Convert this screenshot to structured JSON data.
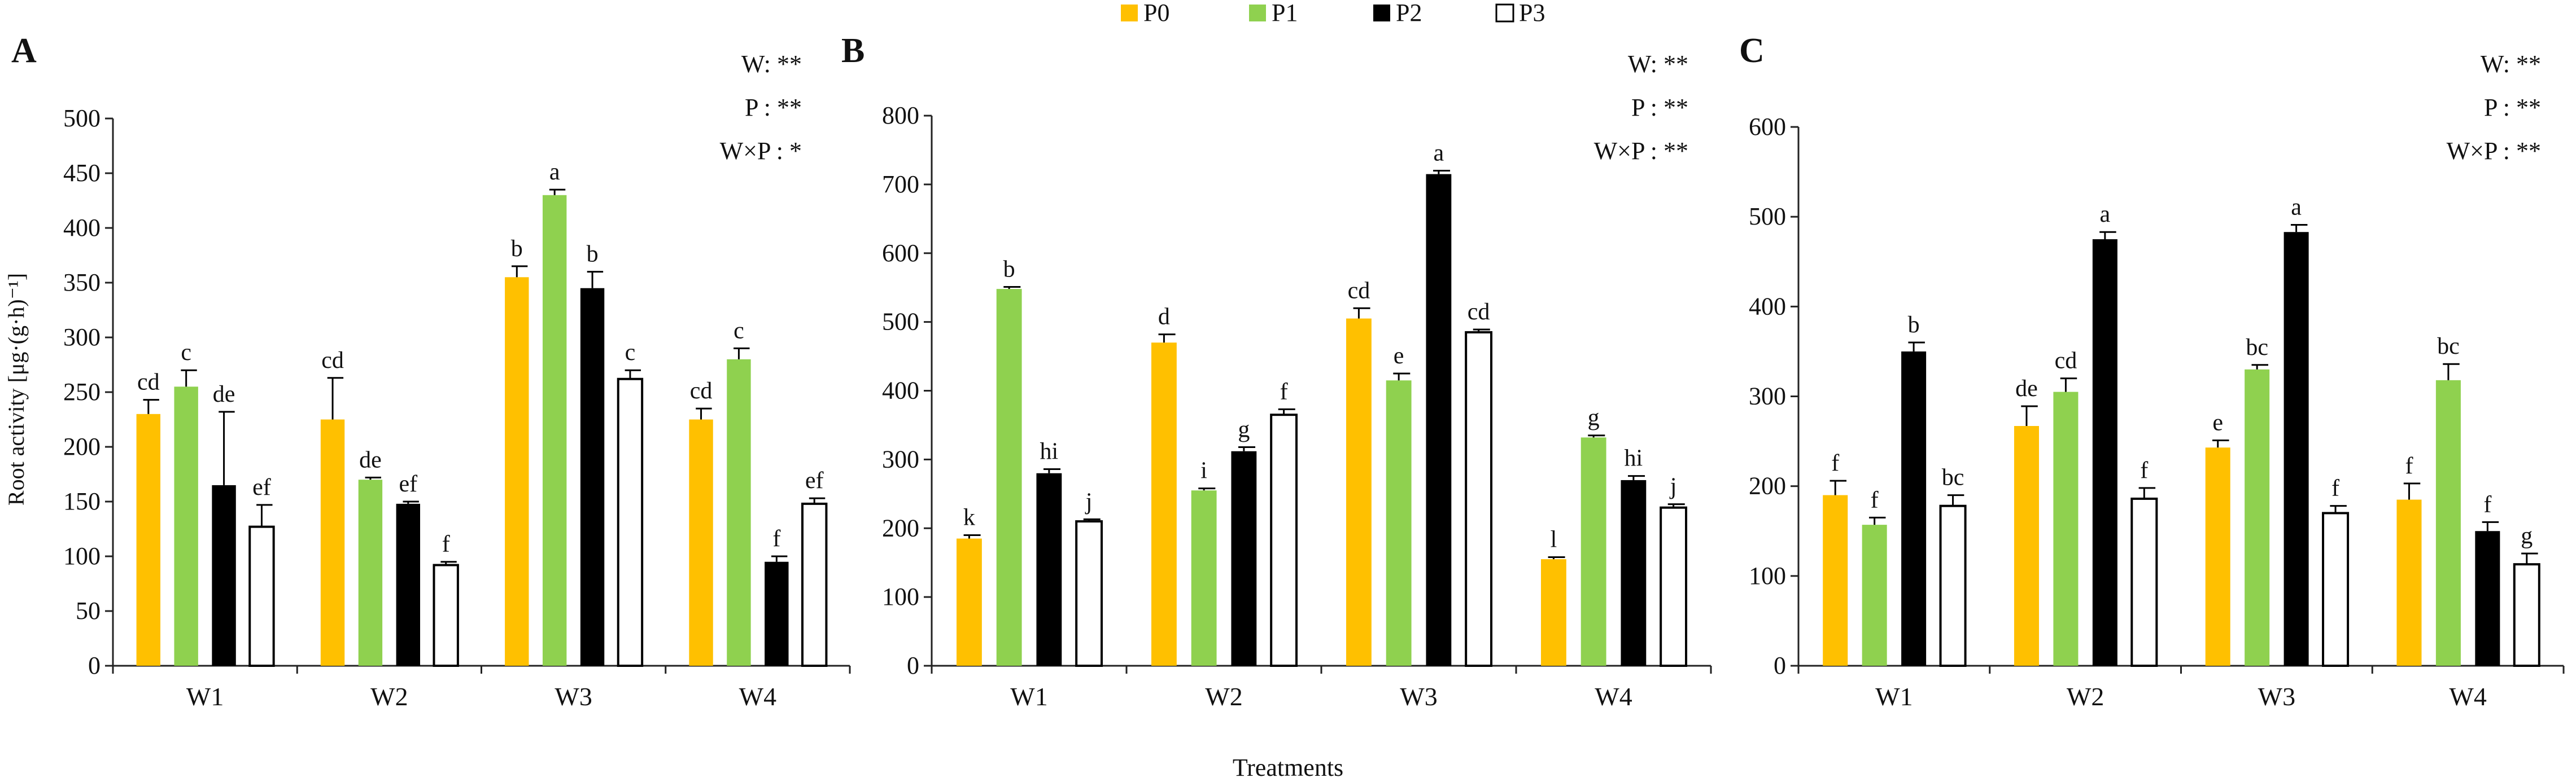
{
  "legend": [
    {
      "label": "P0",
      "color": "#FFC000"
    },
    {
      "label": "P1",
      "color": "#8FD14F"
    },
    {
      "label": "P2",
      "color": "#000000"
    },
    {
      "label": "P3",
      "color": "#FFFFFF"
    }
  ],
  "shared_xlabel": "Treatments",
  "shared_ylabel": "Root activity [μg·(g·h)⁻¹]",
  "chart_data": [
    {
      "type": "bar",
      "panel_label": "A",
      "title": "",
      "xlabel": "Treatments",
      "ylabel": "Root activity [μg·(g·h)⁻¹]",
      "categories": [
        "W1",
        "W2",
        "W3",
        "W4"
      ],
      "ylim": [
        0,
        500
      ],
      "yticks": [
        0,
        50,
        100,
        150,
        200,
        250,
        300,
        350,
        400,
        450,
        500
      ],
      "stats": [
        "W: **",
        "P : **",
        "W×P : *"
      ],
      "series": [
        {
          "name": "P0",
          "values": [
            230,
            225,
            355,
            225
          ],
          "errors": [
            13,
            38,
            10,
            10
          ],
          "letters": [
            "cd",
            "cd",
            "b",
            "cd"
          ]
        },
        {
          "name": "P1",
          "values": [
            255,
            170,
            430,
            280
          ],
          "errors": [
            15,
            2,
            5,
            10
          ],
          "letters": [
            "c",
            "de",
            "a",
            "c"
          ]
        },
        {
          "name": "P2",
          "values": [
            165,
            148,
            345,
            95
          ],
          "errors": [
            67,
            2,
            15,
            5
          ],
          "letters": [
            "de",
            "ef",
            "b",
            "f"
          ]
        },
        {
          "name": "P3",
          "values": [
            127,
            92,
            262,
            148
          ],
          "errors": [
            20,
            3,
            8,
            5
          ],
          "letters": [
            "ef",
            "f",
            "c",
            "ef"
          ]
        }
      ]
    },
    {
      "type": "bar",
      "panel_label": "B",
      "title": "",
      "xlabel": "Treatments",
      "ylabel": "",
      "categories": [
        "W1",
        "W2",
        "W3",
        "W4"
      ],
      "ylim": [
        0,
        800
      ],
      "yticks": [
        0,
        100,
        200,
        300,
        400,
        500,
        600,
        700,
        800
      ],
      "stats": [
        "W: **",
        "P : **",
        "W×P : **"
      ],
      "series": [
        {
          "name": "P0",
          "values": [
            185,
            470,
            505,
            155
          ],
          "errors": [
            5,
            12,
            15,
            3
          ],
          "letters": [
            "k",
            "d",
            "cd",
            "l"
          ]
        },
        {
          "name": "P1",
          "values": [
            548,
            255,
            415,
            332
          ],
          "errors": [
            3,
            3,
            10,
            3
          ],
          "letters": [
            "b",
            "i",
            "e",
            "g"
          ]
        },
        {
          "name": "P2",
          "values": [
            280,
            312,
            715,
            270
          ],
          "errors": [
            6,
            6,
            5,
            6
          ],
          "letters": [
            "hi",
            "g",
            "a",
            "hi"
          ]
        },
        {
          "name": "P3",
          "values": [
            210,
            365,
            485,
            230
          ],
          "errors": [
            3,
            8,
            4,
            5
          ],
          "letters": [
            "j",
            "f",
            "cd",
            "j"
          ]
        }
      ]
    },
    {
      "type": "bar",
      "panel_label": "C",
      "title": "",
      "xlabel": "Treatments",
      "ylabel": "",
      "categories": [
        "W1",
        "W2",
        "W3",
        "W4"
      ],
      "ylim": [
        0,
        600
      ],
      "yticks": [
        0,
        100,
        200,
        300,
        400,
        500,
        600
      ],
      "stats": [
        "W: **",
        "P : **",
        "W×P : **"
      ],
      "series": [
        {
          "name": "P0",
          "values": [
            190,
            267,
            243,
            185
          ],
          "errors": [
            16,
            22,
            8,
            18
          ],
          "letters": [
            "f",
            "de",
            "e",
            "f"
          ]
        },
        {
          "name": "P1",
          "values": [
            157,
            305,
            330,
            318
          ],
          "errors": [
            8,
            15,
            5,
            18
          ],
          "letters": [
            "f",
            "cd",
            "bc",
            "bc"
          ]
        },
        {
          "name": "P2",
          "values": [
            350,
            475,
            483,
            150
          ],
          "errors": [
            10,
            8,
            8,
            10
          ],
          "letters": [
            "b",
            "a",
            "a",
            "f"
          ]
        },
        {
          "name": "P3",
          "values": [
            178,
            186,
            170,
            113
          ],
          "errors": [
            12,
            12,
            8,
            12
          ],
          "letters": [
            "bc",
            "f",
            "f",
            "g"
          ]
        }
      ]
    }
  ]
}
